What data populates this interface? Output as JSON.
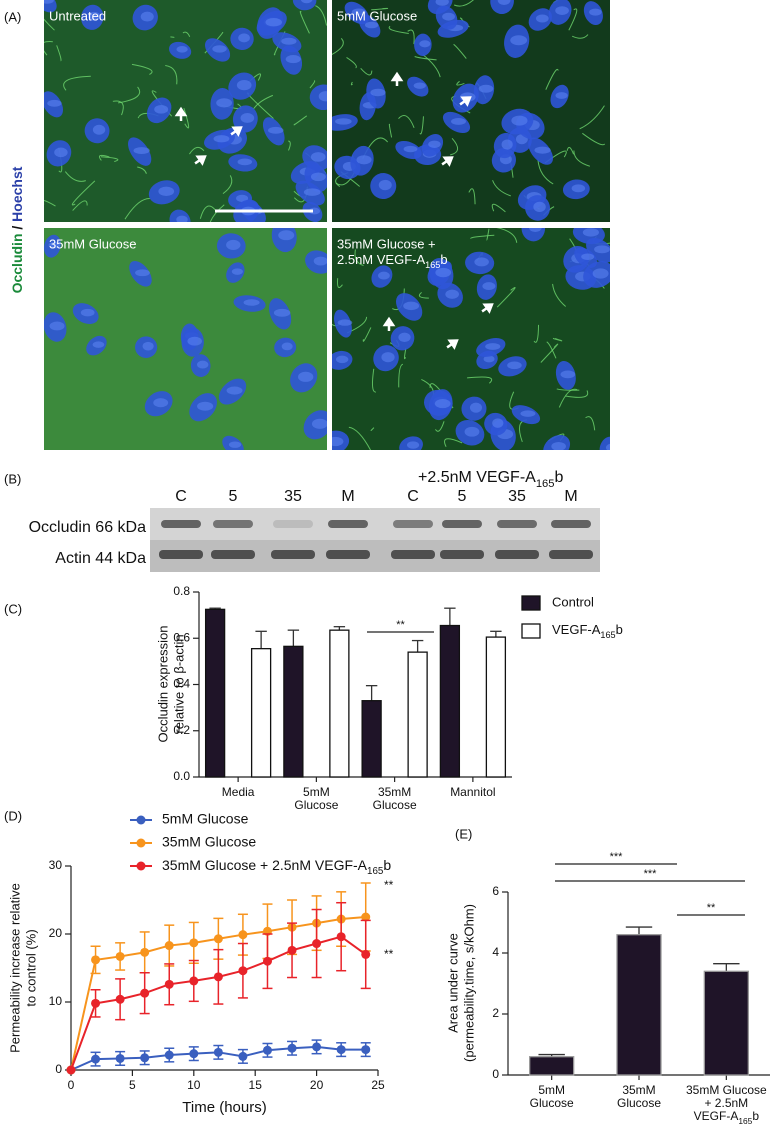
{
  "panel_labels": [
    "(A)",
    "(B)",
    "(C)",
    "(D)",
    "(E)"
  ],
  "microscopy": {
    "stain_label": [
      "Occludin",
      " / ",
      "Hoechst"
    ],
    "images": [
      [
        "Untreated"
      ],
      [
        "5mM Glucose"
      ],
      [
        "35mM Glucose"
      ],
      [
        "35mM Glucose +",
        "2.5nM VEGF-A165b"
      ]
    ]
  },
  "blot": {
    "treatment": "+2.5nM VEGF-A165b",
    "lanes": [
      "C",
      "5",
      "35",
      "M",
      "C",
      "5",
      "35",
      "M"
    ],
    "rows": [
      "Occludin 66 kDa",
      "Actin 44 kDa"
    ]
  },
  "chart_data": [
    {
      "type": "bar",
      "ylabel": [
        "Occludin expression",
        "relative to β-actin"
      ],
      "categories": [
        [
          "Media"
        ],
        [
          "5mM",
          "Glucose"
        ],
        [
          "35mM",
          "Glucose"
        ],
        [
          "Mannitol"
        ]
      ],
      "series": [
        {
          "name": "Control",
          "color": "#1f1428",
          "values": [
            0.725,
            0.565,
            0.33,
            0.655
          ],
          "errors": [
            0.005,
            0.07,
            0.065,
            0.075
          ]
        },
        {
          "name": "VEGF-A165b",
          "color": "#ffffff",
          "values": [
            0.555,
            0.635,
            0.54,
            0.605
          ],
          "errors": [
            0.075,
            0.015,
            0.05,
            0.025
          ]
        }
      ],
      "ylim": [
        0,
        0.8
      ],
      "yticks": [
        {
          "value": 0,
          "label": "0.0"
        },
        0.2,
        0.4,
        0.6,
        0.8
      ],
      "annotations": [
        "**"
      ],
      "legend": "right"
    },
    {
      "type": "line",
      "xlabel": "Time (hours)",
      "ylabel": [
        "Permeability increase relative",
        "to control (%)"
      ],
      "x": [
        0,
        2,
        4,
        6,
        8,
        10,
        12,
        14,
        16,
        18,
        20,
        22,
        24
      ],
      "series": [
        {
          "name": "5mM Glucose",
          "color": "#3a5fbf",
          "values": [
            0,
            1.6,
            1.7,
            1.8,
            2.2,
            2.4,
            2.6,
            2.0,
            2.9,
            3.2,
            3.4,
            3.0,
            3.0
          ],
          "errors": [
            0,
            1,
            1,
            1,
            1,
            1,
            1,
            1,
            1,
            1,
            1,
            1,
            1
          ]
        },
        {
          "name": "35mM Glucose",
          "color": "#f7941d",
          "values": [
            0,
            16.2,
            16.7,
            17.3,
            18.3,
            18.7,
            19.3,
            19.9,
            20.4,
            21,
            21.6,
            22.2,
            22.5
          ],
          "errors": [
            0,
            2,
            2,
            3,
            3,
            3,
            3,
            3,
            4,
            4,
            4,
            4,
            5
          ]
        },
        {
          "name": "35mM Glucose + 2.5nM VEGF-A165b",
          "color": "#e8232a",
          "values": [
            0,
            9.8,
            10.4,
            11.3,
            12.6,
            13.1,
            13.7,
            14.6,
            16,
            17.6,
            18.6,
            19.6,
            17
          ],
          "errors": [
            0,
            2,
            3,
            3,
            3,
            3,
            4,
            4,
            4,
            4,
            5,
            5,
            5
          ]
        }
      ],
      "xlim": [
        0,
        25
      ],
      "xticks": [
        0,
        5,
        10,
        15,
        20,
        25
      ],
      "ylim": [
        0,
        30
      ],
      "yticks": [
        0,
        10,
        20,
        30
      ],
      "annotations": [
        "**",
        "**"
      ],
      "legend": "top"
    },
    {
      "type": "bar",
      "ylabel": [
        "Area under curve",
        "(permeability.time, s/kOhm)"
      ],
      "categories": [
        [
          "5mM",
          "Glucose"
        ],
        [
          "35mM",
          "Glucose"
        ],
        [
          "35mM Glucose",
          "+ 2.5nM",
          "VEGF-A165b"
        ]
      ],
      "values": [
        0.6,
        4.6,
        3.4
      ],
      "errors": [
        0.07,
        0.25,
        0.25
      ],
      "color": "#1f1428",
      "ylim": [
        0,
        6
      ],
      "yticks": [
        0,
        2,
        4,
        6
      ],
      "annotations": [
        "***",
        "***",
        "**"
      ]
    }
  ]
}
